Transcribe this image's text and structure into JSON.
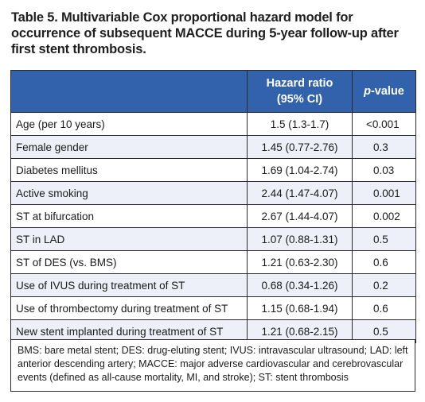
{
  "title": {
    "line1": "Table 5. Multivariable Cox proportional hazard model for",
    "line2": "occurrence of subsequent MACCE during 5-year follow-up after",
    "line3": "first stent thrombosis."
  },
  "table": {
    "headers": {
      "col1": "",
      "hazard_line1": "Hazard ratio",
      "hazard_line2": "(95% CI)",
      "p_prefix": "p",
      "p_suffix": "-value"
    },
    "rows": [
      {
        "label": "Age (per 10 years)",
        "hr": "1.5 (1.3-1.7)",
        "p": "<0.001"
      },
      {
        "label": "Female gender",
        "hr": "1.45 (0.77-2.76)",
        "p": "0.3"
      },
      {
        "label": "Diabetes mellitus",
        "hr": "1.69 (1.04-2.74)",
        "p": "0.03"
      },
      {
        "label": "Active smoking",
        "hr": "2.44 (1.47-4.07)",
        "p": "0.001"
      },
      {
        "label": "ST at bifurcation",
        "hr": "2.67 (1.44-4.07)",
        "p": "0.002"
      },
      {
        "label": "ST in LAD",
        "hr": "1.07 (0.88-1.31)",
        "p": "0.5"
      },
      {
        "label": "ST of DES (vs. BMS)",
        "hr": "1.21 (0.63-2.30)",
        "p": "0.6"
      },
      {
        "label": "Use of IVUS during treatment of ST",
        "hr": "0.68 (0.34-1.26)",
        "p": "0.2"
      },
      {
        "label": "Use of thrombectomy during treatment of ST",
        "hr": "1.15 (0.68-1.94)",
        "p": "0.6"
      },
      {
        "label": "New stent implanted during treatment of ST",
        "hr": "1.21 (0.68-2.15)",
        "p": "0.5"
      }
    ]
  },
  "footnote": "BMS: bare metal stent; DES: drug-eluting stent; IVUS: intravascular ultrasound; LAD: left anterior descending artery; MACCE: major adverse cardiovascular and cerebrovascular events (defined as all-cause mortality, MI, and stroke); ST: stent thrombosis",
  "colors": {
    "header_bg": "#3262ac",
    "stripe_bg": "#edf0f8"
  }
}
